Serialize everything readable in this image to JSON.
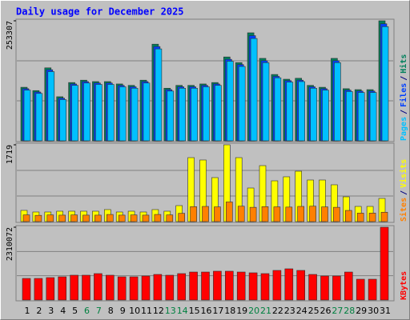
{
  "chart_data": {
    "type": "bar",
    "title": "Daily usage for December 2025",
    "categories": [
      "1",
      "2",
      "3",
      "4",
      "5",
      "6",
      "7",
      "8",
      "9",
      "10",
      "11",
      "12",
      "13",
      "14",
      "15",
      "16",
      "17",
      "18",
      "19",
      "20",
      "21",
      "22",
      "23",
      "24",
      "25",
      "26",
      "27",
      "28",
      "29",
      "30",
      "31"
    ],
    "category_colors": [
      "#000000",
      "#000000",
      "#000000",
      "#000000",
      "#000000",
      "#008040",
      "#008040",
      "#000000",
      "#000000",
      "#000000",
      "#000000",
      "#000000",
      "#008040",
      "#008040",
      "#000000",
      "#000000",
      "#000000",
      "#000000",
      "#000000",
      "#008040",
      "#008040",
      "#000000",
      "#000000",
      "#000000",
      "#000000",
      "#000000",
      "#008040",
      "#008040",
      "#000000",
      "#000000",
      "#000000"
    ],
    "legend_separator": "/",
    "panels": [
      {
        "ylim": [
          0,
          253307
        ],
        "yticks": [
          253307
        ],
        "series": [
          {
            "name": "Hits",
            "color": "#00805c",
            "values": [
              113000,
              106000,
              154000,
              93000,
              123000,
              128000,
              125000,
              125000,
              120000,
              117000,
              128000,
              204000,
              111000,
              117000,
              117000,
              120000,
              123000,
              177000,
              165000,
              228000,
              174000,
              140000,
              130000,
              132000,
              117000,
              113000,
              174000,
              110000,
              108000,
              108000,
              253307
            ]
          },
          {
            "name": "Files",
            "color": "#0040ff",
            "values": [
              110000,
              103000,
              150000,
              90000,
              120000,
              125000,
              122000,
              122000,
              117000,
              114000,
              125000,
              199000,
              108000,
              114000,
              114000,
              117000,
              120000,
              172000,
              161000,
              222000,
              169000,
              136000,
              127000,
              128000,
              114000,
              110000,
              169000,
              107000,
              105000,
              105000,
              247000
            ]
          },
          {
            "name": "Pages",
            "color": "#00c0ff",
            "values": [
              107000,
              100000,
              146000,
              87000,
              117000,
              122000,
              119000,
              119000,
              114000,
              111000,
              122000,
              194000,
              105000,
              111000,
              111000,
              114000,
              117000,
              168000,
              157000,
              216000,
              165000,
              133000,
              124000,
              125000,
              111000,
              107000,
              165000,
              104000,
              102000,
              102000,
              241000
            ]
          }
        ]
      },
      {
        "ylim": [
          0,
          1719
        ],
        "yticks": [
          1719
        ],
        "series": [
          {
            "name": "Visits",
            "color": "#ffff00",
            "values": [
              251,
              215,
              215,
              233,
              233,
              233,
              233,
              269,
              215,
              233,
              215,
              269,
              233,
              358,
              1432,
              1379,
              985,
              1719,
              1432,
              752,
              1253,
              913,
              1003,
              1128,
              931,
              931,
              824,
              555,
              340,
              340,
              519
            ]
          },
          {
            "name": "Sites",
            "color": "#ff8000",
            "values": [
              150,
              140,
              150,
              145,
              150,
              145,
              145,
              160,
              145,
              150,
              145,
              160,
              150,
              185,
              335,
              340,
              330,
              440,
              345,
              320,
              335,
              330,
              325,
              340,
              345,
              330,
              320,
              250,
              190,
              190,
              210
            ]
          }
        ]
      },
      {
        "ylim": [
          0,
          2310072
        ],
        "yticks": [
          2310072
        ],
        "series": [
          {
            "name": "KBytes",
            "color": "#ff0000",
            "values": [
              685000,
              685000,
              711000,
              736000,
              787000,
              787000,
              838000,
              787000,
              736000,
              736000,
              762000,
              812000,
              787000,
              838000,
              888000,
              888000,
              914000,
              914000,
              888000,
              863000,
              838000,
              939000,
              990000,
              939000,
              812000,
              762000,
              762000,
              888000,
              660000,
              660000,
              2310072
            ]
          }
        ]
      }
    ]
  }
}
